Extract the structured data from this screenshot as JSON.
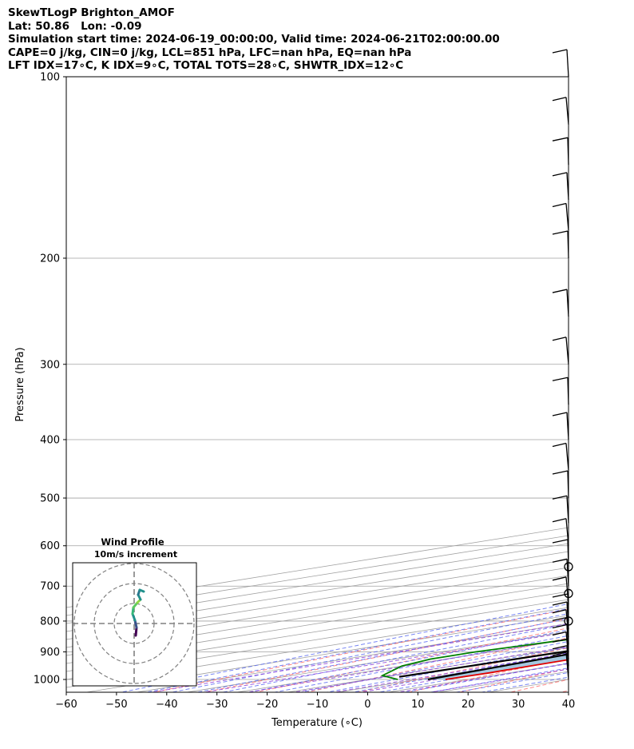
{
  "header": {
    "line1": "SkewTLogP Brighton_AMOF",
    "line2": "Lat: 50.86   Lon: -0.09",
    "line3": "Simulation start time: 2024-06-19_00:00:00, Valid time: 2024-06-21T02:00:00.00",
    "line4": "CAPE=0 j/kg, CIN=0 j/kg, LCL=851 hPa, LFC=nan hPa, EQ=nan hPa",
    "line5": "LFT IDX=17∘C, K IDX=9∘C, TOTAL TOTS=28∘C, SHWTR_IDX=12∘C"
  },
  "chart_data": {
    "type": "line",
    "subtype": "skew-T log-P diagram",
    "xlabel": "Temperature (∘C)",
    "ylabel": "Pressure (hPa)",
    "xlim": [
      -60,
      40
    ],
    "ylim": [
      1050,
      100
    ],
    "y_scale": "log",
    "grid": true,
    "x_ticks": [
      "−60",
      "−50",
      "−40",
      "−30",
      "−20",
      "−10",
      "0",
      "10",
      "20",
      "30",
      "40"
    ],
    "y_ticks": [
      "100",
      "200",
      "300",
      "400",
      "500",
      "600",
      "700",
      "800",
      "900",
      "1000"
    ],
    "colors": {
      "temperature": "#e00000",
      "dewpoint": "#008000",
      "parcel": "#000000",
      "shading": "#a4c8e0",
      "dry_adiabat": "#ff6060",
      "moist_adiabat": "#4a5cf0",
      "mixing_ratio": "#8a3ad8",
      "isotherm": "#a0a0a0"
    },
    "series": [
      {
        "key": "temperature",
        "points": [
          [
            15.5,
            1000
          ],
          [
            16,
            975
          ],
          [
            15.5,
            950
          ],
          [
            15.2,
            925
          ],
          [
            14.8,
            900
          ],
          [
            14,
            850
          ],
          [
            12.5,
            800
          ],
          [
            10.6,
            750
          ],
          [
            8.4,
            700
          ],
          [
            6.9,
            650
          ],
          [
            5.1,
            600
          ],
          [
            2.6,
            550
          ],
          [
            -1.4,
            500
          ],
          [
            -6.2,
            450
          ],
          [
            -11.2,
            400
          ],
          [
            -16.1,
            350
          ],
          [
            -21.5,
            300
          ],
          [
            -27.2,
            280
          ],
          [
            -31.6,
            250
          ],
          [
            -37.7,
            200
          ],
          [
            -43.2,
            180
          ],
          [
            -48.5,
            165
          ],
          [
            -52.5,
            150
          ],
          [
            -55.5,
            135
          ],
          [
            -60.3,
            115
          ],
          [
            -63,
            100
          ]
        ]
      },
      {
        "key": "dewpoint",
        "points": [
          [
            6,
            1000
          ],
          [
            -2,
            985
          ],
          [
            -10,
            950
          ],
          [
            -13,
            925
          ],
          [
            -13,
            900
          ],
          [
            -9.5,
            850
          ],
          [
            0.3,
            800
          ],
          [
            4.7,
            750
          ],
          [
            4.3,
            700
          ],
          [
            1,
            650
          ],
          [
            -6.1,
            600
          ],
          [
            -16,
            550
          ],
          [
            -17.4,
            500
          ],
          [
            -15.5,
            450
          ],
          [
            -23.4,
            400
          ],
          [
            -28.7,
            350
          ],
          [
            -31.5,
            330
          ],
          [
            -33,
            300
          ],
          [
            -38,
            275
          ],
          [
            -45,
            240
          ],
          [
            -47.5,
            215
          ],
          [
            -48.5,
            200
          ],
          [
            -49,
            178
          ],
          [
            -43.5,
            150
          ],
          [
            -36,
            120
          ],
          [
            -30,
            100
          ]
        ]
      },
      {
        "key": "parcel",
        "points": [
          [
            12,
            1000
          ],
          [
            9.6,
            940
          ],
          [
            7.2,
            880
          ],
          [
            5.1,
            851
          ],
          [
            2,
            800
          ],
          [
            -1.5,
            750
          ],
          [
            -5,
            700
          ],
          [
            -9,
            650
          ],
          [
            -13.5,
            600
          ],
          [
            -18.5,
            550
          ],
          [
            -24,
            500
          ],
          [
            -30.5,
            450
          ],
          [
            -37.5,
            400
          ],
          [
            -45,
            350
          ],
          [
            -54,
            300
          ],
          [
            -64,
            250
          ],
          [
            -76,
            200
          ],
          [
            -90,
            150
          ],
          [
            -102,
            120
          ],
          [
            -110,
            100
          ]
        ]
      },
      {
        "key": "parcel-surface-segment",
        "points": [
          [
            3,
            990
          ],
          [
            5,
            851
          ]
        ]
      }
    ],
    "wind_barbs_pressure": [
      1000,
      975,
      950,
      925,
      900,
      875,
      850,
      825,
      800,
      750,
      700,
      650,
      600,
      550,
      500,
      450,
      400,
      350,
      300,
      250,
      200,
      180,
      160,
      140,
      120,
      100
    ],
    "calm_levels_hpa": [
      650,
      720,
      800
    ],
    "inset": {
      "title": "Wind Profile",
      "subtitle": "10m/s increment"
    }
  }
}
